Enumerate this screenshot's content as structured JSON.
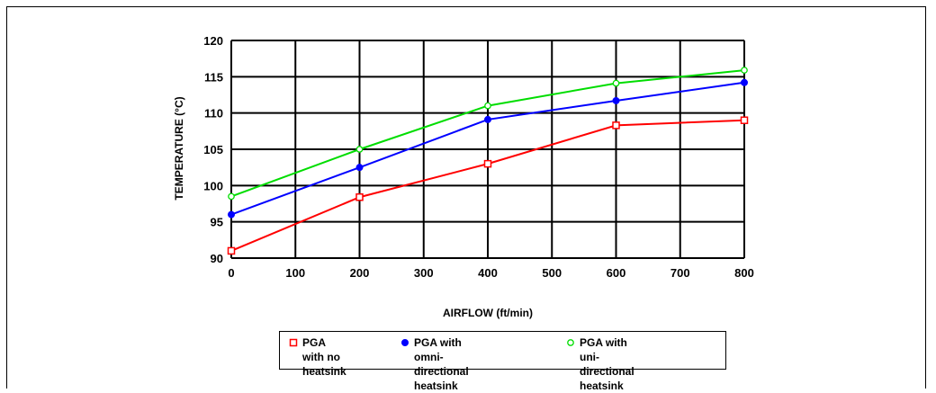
{
  "chart_data": {
    "type": "line",
    "xlabel": "AIRFLOW (ft/min)",
    "ylabel": "TEMPERATURE (°C)",
    "xlim": [
      0,
      800
    ],
    "ylim": [
      90,
      120
    ],
    "x_ticks": [
      "0",
      "100",
      "200",
      "300",
      "400",
      "500",
      "600",
      "700",
      "800"
    ],
    "y_ticks": [
      "90",
      "95",
      "100",
      "105",
      "110",
      "115",
      "120"
    ],
    "grid": true,
    "legend_position": "bottom",
    "series": [
      {
        "name": "PGA with no heatsink",
        "legend_text": "PGA with no\nheatsink",
        "color": "#ff0000",
        "marker": "open-square",
        "x": [
          0,
          200,
          400,
          600,
          800
        ],
        "y": [
          91.0,
          98.4,
          103.0,
          108.3,
          109.0
        ]
      },
      {
        "name": "PGA with omni-directional heatsink",
        "legend_text": "PGA with omni-\ndirectional heatsink",
        "color": "#0000ff",
        "marker": "filled-circle",
        "x": [
          0,
          200,
          400,
          600,
          800
        ],
        "y": [
          96.0,
          102.5,
          109.1,
          111.7,
          114.2
        ]
      },
      {
        "name": "PGA with uni-directional heatsink",
        "legend_text": "PGA with uni-\ndirectional heatsink",
        "color": "#00dd00",
        "marker": "open-circle",
        "x": [
          0,
          200,
          400,
          600,
          800
        ],
        "y": [
          98.5,
          105.0,
          111.0,
          114.1,
          115.9
        ]
      }
    ]
  }
}
